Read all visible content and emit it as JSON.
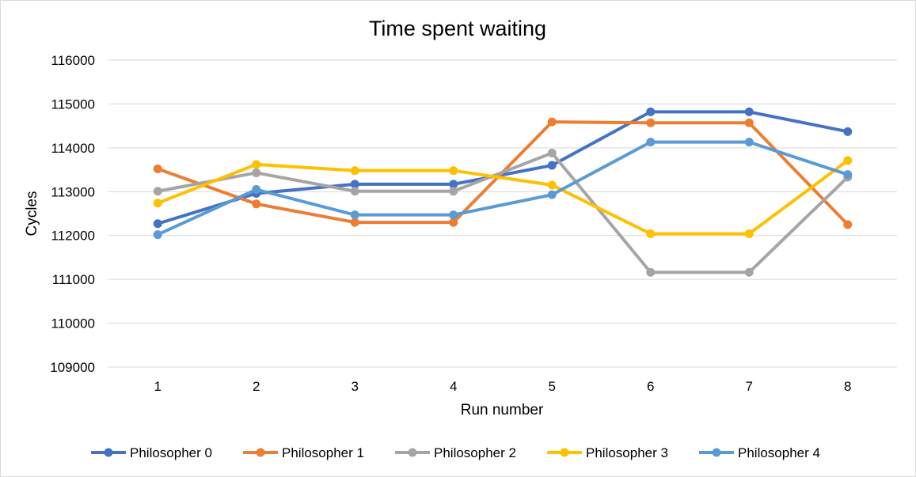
{
  "chart_data": {
    "type": "line",
    "title": "Time spent waiting",
    "xlabel": "Run number",
    "ylabel": "Cycles",
    "categories": [
      "1",
      "2",
      "3",
      "4",
      "5",
      "6",
      "7",
      "8"
    ],
    "ylim": [
      109000,
      116000
    ],
    "yticks": [
      "109000",
      "110000",
      "111000",
      "112000",
      "113000",
      "114000",
      "115000",
      "116000"
    ],
    "grid": true,
    "legend_position": "bottom",
    "series": [
      {
        "name": "Philosopher 0",
        "color": "#4472C4",
        "values": [
          112270,
          112960,
          113170,
          113170,
          113600,
          114820,
          114820,
          114370
        ]
      },
      {
        "name": "Philosopher 1",
        "color": "#ED7D31",
        "values": [
          113520,
          112720,
          112300,
          112300,
          114590,
          114570,
          114570,
          112250
        ]
      },
      {
        "name": "Philosopher 2",
        "color": "#A5A5A5",
        "values": [
          113010,
          113430,
          113010,
          113010,
          113880,
          111160,
          111160,
          113330
        ]
      },
      {
        "name": "Philosopher 3",
        "color": "#FFC000",
        "values": [
          112740,
          113620,
          113480,
          113480,
          113150,
          112040,
          112040,
          113710
        ]
      },
      {
        "name": "Philosopher 4",
        "color": "#5B9BD5",
        "values": [
          112020,
          113050,
          112470,
          112470,
          112930,
          114130,
          114130,
          113390
        ]
      }
    ]
  }
}
